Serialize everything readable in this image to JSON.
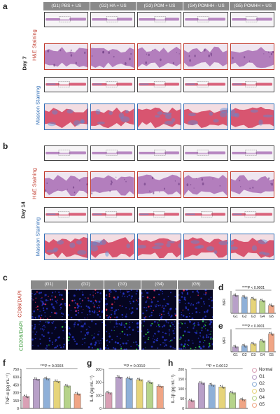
{
  "panel_letters": {
    "a": "a",
    "b": "b",
    "c": "c",
    "d": "d",
    "e": "e",
    "f": "f",
    "g": "g",
    "h": "h"
  },
  "groups_ab": [
    "(G1) PBS + US",
    "(G2) HA + US",
    "(G3) POM + US",
    "(G4) POMHH - US",
    "(G5) POMHH + US"
  ],
  "groups_c": [
    "(G1)",
    "(G2)",
    "(G3)",
    "(G4)",
    "(G5)"
  ],
  "day7": "Day 7",
  "day14": "Day 14",
  "he_label": "H&E Staining",
  "masson_label": "Masson Staining",
  "cd86_label": "CD86/DAPI",
  "cd206_label": "CD206/DAPI",
  "colors": {
    "he_border": "#c0392b",
    "masson_border": "#2f6db5",
    "he_stain": "#a86bb4",
    "masson_stain": "#d23d5c",
    "masson_blue": "#5b8dd6",
    "normal": "#d9a0b5",
    "g1": "#b8a0c8",
    "g2": "#8fb0d8",
    "g3": "#e6d47a",
    "g4": "#b6d38a",
    "g5": "#f0a585"
  },
  "chart_data": [
    {
      "type": "bar",
      "id": "d",
      "categories": [
        "G1",
        "G2",
        "G3",
        "G4",
        "G5"
      ],
      "values": [
        68,
        62,
        55,
        48,
        30
      ],
      "ylabel": "MFI",
      "annotation": "****P < 0.0001"
    },
    {
      "type": "bar",
      "id": "e",
      "categories": [
        "G1",
        "G2",
        "G3",
        "G4",
        "G5"
      ],
      "values": [
        25,
        30,
        40,
        55,
        90
      ],
      "ylabel": "MFI",
      "annotation": "****P < 0.0001"
    },
    {
      "type": "bar",
      "id": "f",
      "categories": [
        "Normal",
        "G1",
        "G2",
        "G3",
        "G4",
        "G5"
      ],
      "values": [
        230,
        560,
        570,
        520,
        430,
        280
      ],
      "ylabel": "TNF-α (pg mL⁻¹)",
      "annotation": "***P = 0.0003",
      "ylim": [
        0,
        750
      ],
      "yticks": [
        "0",
        "150",
        "300",
        "450",
        "600",
        "750"
      ]
    },
    {
      "type": "bar",
      "id": "g",
      "categories": [
        "Normal",
        "G1",
        "G2",
        "G3",
        "G4",
        "G5"
      ],
      "values": [
        120,
        240,
        230,
        220,
        200,
        170
      ],
      "ylabel": "IL-6 (pg mL⁻¹)",
      "annotation": "**P = 0.0010",
      "ylim": [
        0,
        300
      ],
      "yticks": [
        "0",
        "100",
        "200",
        "300"
      ]
    },
    {
      "type": "bar",
      "id": "h",
      "categories": [
        "Normal",
        "G1",
        "G2",
        "G3",
        "G4",
        "G5"
      ],
      "values": [
        40,
        130,
        120,
        110,
        80,
        45
      ],
      "ylabel": "IL-1β (pg mL⁻¹)",
      "annotation": "**P = 0.0012",
      "ylim": [
        0,
        200
      ],
      "yticks": [
        "0",
        "50",
        "100",
        "150",
        "200"
      ]
    }
  ],
  "legend": [
    "Normal",
    "G1",
    "G2",
    "G3",
    "G4",
    "G5"
  ]
}
